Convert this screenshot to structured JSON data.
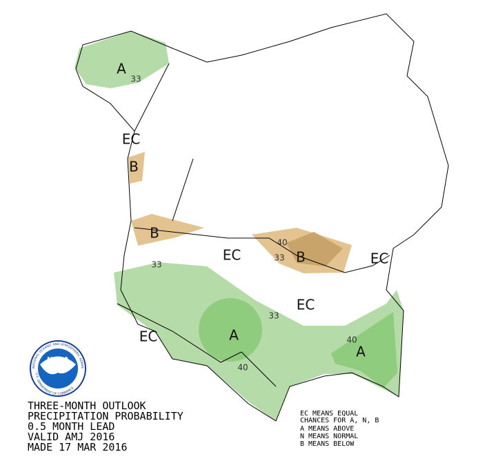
{
  "map": {
    "labels": [
      {
        "text": "A"
      },
      {
        "text": "33"
      },
      {
        "text": "EC"
      },
      {
        "text": "B"
      },
      {
        "text": "B"
      },
      {
        "text": "40"
      },
      {
        "text": "33"
      },
      {
        "text": "B"
      },
      {
        "text": "EC"
      },
      {
        "text": "EC"
      },
      {
        "text": "33"
      },
      {
        "text": "EC"
      },
      {
        "text": "33"
      },
      {
        "text": "A"
      },
      {
        "text": "40"
      },
      {
        "text": "EC"
      },
      {
        "text": "40"
      },
      {
        "text": "A"
      }
    ]
  },
  "logo": {
    "name": "NOAA",
    "ring_top": "NATIONAL OCEANIC AND ATMOSPHERIC ADMINISTRATION",
    "ring_bottom": "U.S. DEPARTMENT OF COMMERCE"
  },
  "caption": {
    "lines": [
      "THREE-MONTH OUTLOOK",
      "PRECIPITATION PROBABILITY",
      "0.5 MONTH LEAD",
      "VALID AMJ 2016",
      "MADE 17 MAR 2016"
    ]
  },
  "legend": {
    "lines": [
      "EC MEANS EQUAL",
      "CHANCES FOR A, N, B",
      "A MEANS ABOVE",
      "N MEANS NORMAL",
      "B MEANS BELOW"
    ]
  }
}
